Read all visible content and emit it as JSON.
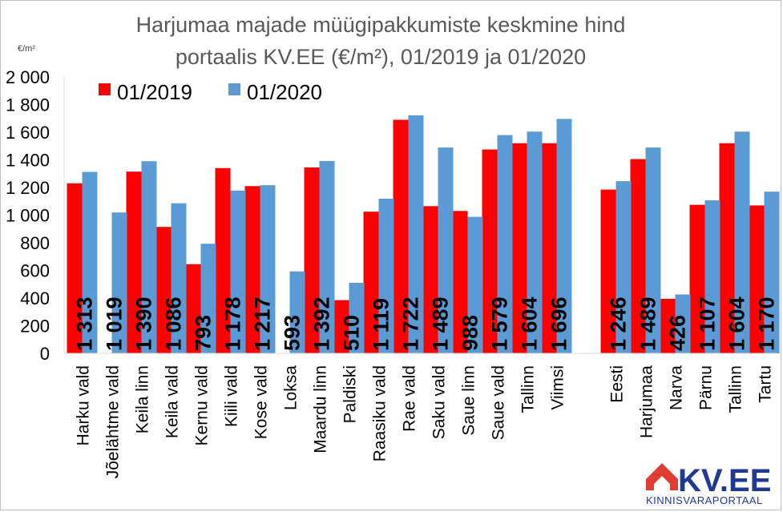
{
  "chart_data": {
    "type": "bar",
    "title_line1": "Harjumaa majade müügipakkumiste keskmine hind",
    "title_line2": "portaalis KV.EE (€/m²), 01/2019 ja 01/2020",
    "unit_label": "€/m²",
    "ylim": [
      0,
      2000
    ],
    "yticks": [
      "0",
      "200",
      "400",
      "600",
      "800",
      "1 000",
      "1 200",
      "1 400",
      "1 600",
      "1 800",
      "2 000"
    ],
    "grid": false,
    "legend_position": "top-left",
    "categories": [
      "Harku vald",
      "Jõelähtme vald",
      "Keila linn",
      "Keila vald",
      "Kernu vald",
      "Kiili vald",
      "Kose vald",
      "Loksa",
      "Maardu linn",
      "Paldiski",
      "Raasiku vald",
      "Rae vald",
      "Saku vald",
      "Saue linn",
      "Saue vald",
      "Tallinn",
      "Viimsi",
      "",
      "Eesti",
      "Harjumaa",
      "Narva",
      "Pärnu",
      "Tallinn",
      "Tartu"
    ],
    "series": [
      {
        "name": "01/2019",
        "color": "#ff0000",
        "values": [
          1230,
          null,
          1315,
          915,
          645,
          1340,
          1210,
          null,
          1345,
          385,
          1025,
          1690,
          1065,
          1030,
          1475,
          1520,
          1520,
          null,
          1185,
          1405,
          395,
          1075,
          1520,
          1070
        ]
      },
      {
        "name": "01/2020",
        "color": "#5b9bd5",
        "values": [
          1313,
          1019,
          1390,
          1086,
          793,
          1178,
          1217,
          593,
          1392,
          510,
          1119,
          1722,
          1489,
          988,
          1579,
          1604,
          1696,
          null,
          1246,
          1489,
          426,
          1107,
          1604,
          1170
        ]
      }
    ],
    "data_labels": [
      "1 313",
      "1 019",
      "1 390",
      "1 086",
      "793",
      "1 178",
      "1 217",
      "593",
      "1 392",
      "510",
      "1 119",
      "1 722",
      "1 489",
      "988",
      "1 579",
      "1 604",
      "1 696",
      "",
      "1 246",
      "1 489",
      "426",
      "1 107",
      "1 604",
      "1 170"
    ]
  },
  "logo": {
    "brand": "KV.EE",
    "subtitle": "KINNISVARAPORTAAL",
    "brand_color": "#1f3a93",
    "house_color": "#e03c31"
  }
}
